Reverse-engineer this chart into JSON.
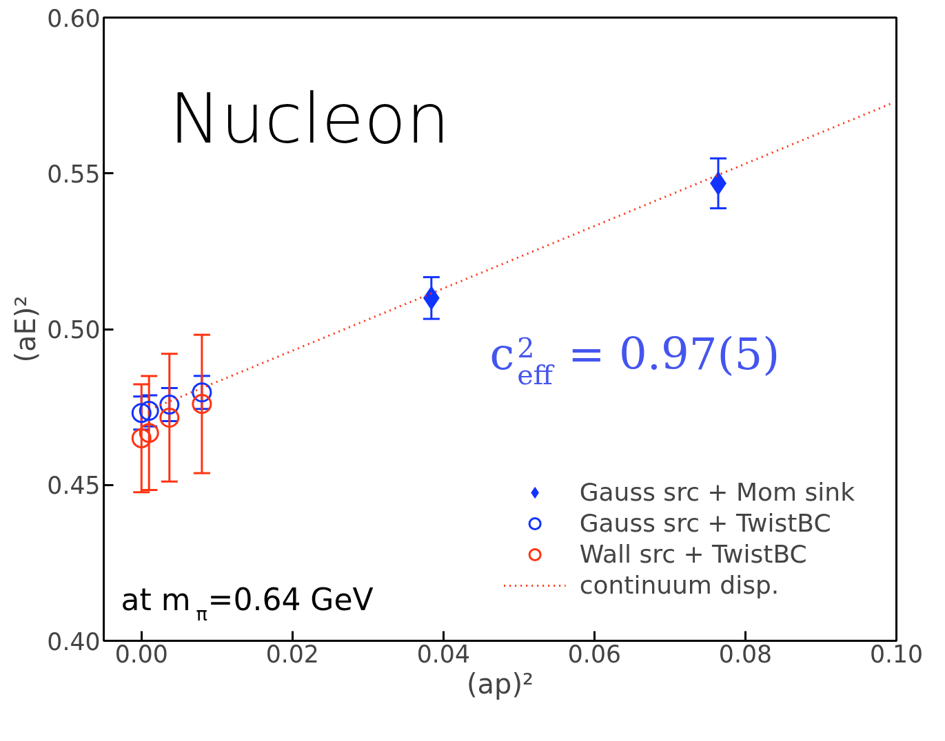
{
  "chart_data": {
    "type": "scatter",
    "xlabel": "(ap)²",
    "ylabel": "(aE)²",
    "xlim": [
      -0.005,
      0.1
    ],
    "ylim": [
      0.4,
      0.6
    ],
    "xticks": [
      {
        "value": 0,
        "label": "0.00"
      },
      {
        "value": 0.02,
        "label": "0.02"
      },
      {
        "value": 0.04,
        "label": "0.04"
      },
      {
        "value": 0.06,
        "label": "0.06"
      },
      {
        "value": 0.08,
        "label": "0.08"
      },
      {
        "value": 0.1,
        "label": "0.10"
      }
    ],
    "yticks": [
      {
        "value": 0.4,
        "label": "0.40"
      },
      {
        "value": 0.45,
        "label": "0.45"
      },
      {
        "value": 0.5,
        "label": "0.50"
      },
      {
        "value": 0.55,
        "label": "0.55"
      },
      {
        "value": 0.6,
        "label": "0.60"
      }
    ],
    "grid": false,
    "legend": "bottom right",
    "annotations": [
      "Nucleon",
      "c$_{eff}$$^{2}$ = 0.97(5)",
      "at m$_{π}$=0.64 GeV"
    ],
    "series": [
      {
        "name": "Gauss src + Mom sink",
        "color": "#1133ff",
        "marker": "diamond",
        "x": [
          0.0384,
          0.0764
        ],
        "values": [
          0.51,
          0.5468
        ],
        "errors": [
          0.0067,
          0.008
        ]
      },
      {
        "name": "Gauss src + TwistBC",
        "color": "#1133ff",
        "marker": "circle",
        "x": [
          0.0,
          0.001,
          0.0037,
          0.008
        ],
        "values": [
          0.4731,
          0.4738,
          0.4758,
          0.4797
        ],
        "errors": [
          0.0053,
          0.005,
          0.0053,
          0.0053
        ]
      },
      {
        "name": "Wall src + TwistBC",
        "color": "#ff3311",
        "marker": "circle",
        "x": [
          0.0,
          0.001,
          0.0037,
          0.008
        ],
        "values": [
          0.465,
          0.4667,
          0.4716,
          0.476
        ],
        "errors": [
          0.0173,
          0.0183,
          0.0205,
          0.0222
        ]
      },
      {
        "name": "continuum disp.",
        "type": "line",
        "color": "#ff3311",
        "marker": "none",
        "line_style": "dotted",
        "x": [
          0.0018,
          0.0992
        ],
        "values": [
          0.4749,
          0.5723
        ]
      }
    ]
  }
}
